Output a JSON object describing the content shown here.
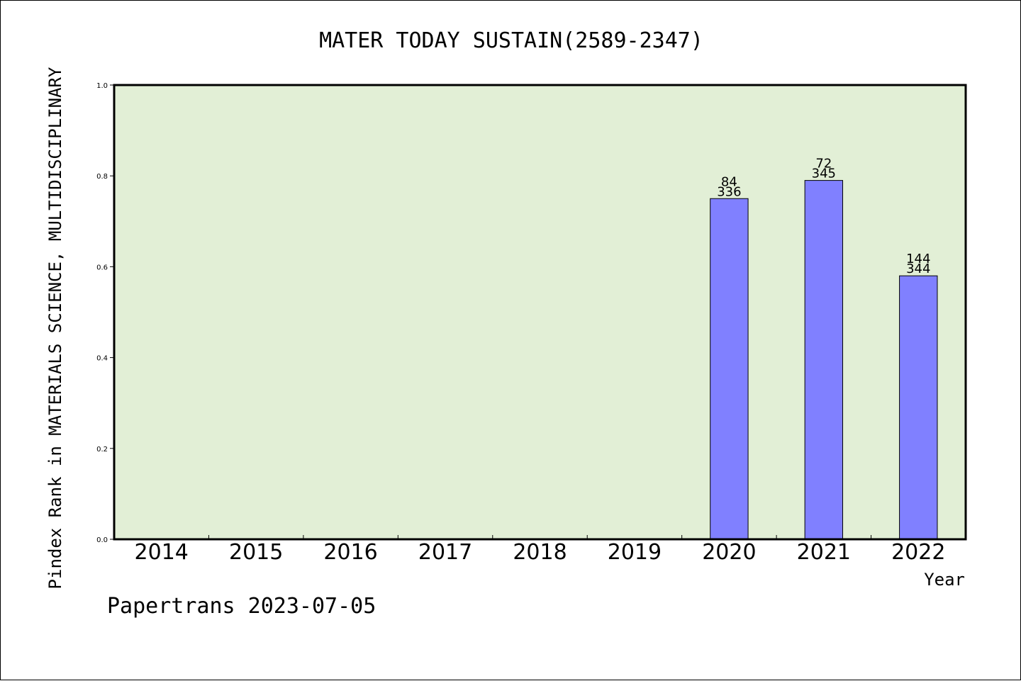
{
  "chart_data": {
    "type": "bar",
    "title": "MATER TODAY SUSTAIN(2589-2347)",
    "xlabel": "Year",
    "ylabel": "Pindex Rank in MATERIALS SCIENCE, MULTIDISCIPLINARY",
    "ylim": [
      0.0,
      1.0
    ],
    "yticks": [
      "0.0",
      "0.2",
      "0.4",
      "0.6",
      "0.8",
      "1.0"
    ],
    "categories": [
      "2014",
      "2015",
      "2016",
      "2017",
      "2018",
      "2019",
      "2020",
      "2021",
      "2022"
    ],
    "values": [
      null,
      null,
      null,
      null,
      null,
      null,
      0.75,
      0.79,
      0.58
    ],
    "rank_labels": [
      "",
      "",
      "",
      "",
      "",
      "",
      "84",
      "72",
      "144"
    ],
    "total_labels": [
      "",
      "",
      "",
      "",
      "",
      "",
      "336",
      "345",
      "344"
    ],
    "grid": false,
    "colors": {
      "bar": "#8080ff",
      "plot_bg": "#e2efd6"
    }
  },
  "footer": "Papertrans 2023-07-05"
}
